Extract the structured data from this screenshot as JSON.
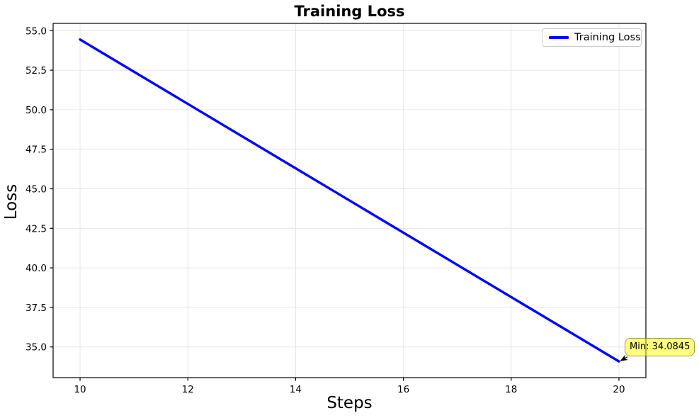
{
  "figure": {
    "background": "#ffffff"
  },
  "chart_data": {
    "type": "line",
    "title": "Training Loss",
    "xlabel": "Steps",
    "ylabel": "Loss",
    "xlim": [
      9.5,
      20.5
    ],
    "ylim": [
      33.06,
      55.46
    ],
    "xticks": [
      10,
      12,
      14,
      16,
      18,
      20
    ],
    "xtick_labels": [
      "10",
      "12",
      "14",
      "16",
      "18",
      "20"
    ],
    "yticks": [
      35.0,
      37.5,
      40.0,
      42.5,
      45.0,
      47.5,
      50.0,
      52.5,
      55.0
    ],
    "ytick_labels": [
      "35.0",
      "37.5",
      "40.0",
      "42.5",
      "45.0",
      "47.5",
      "50.0",
      "52.5",
      "55.0"
    ],
    "grid": true,
    "legend_position": "upper right",
    "series": [
      {
        "name": "Training Loss",
        "color": "#0000ff",
        "x": [
          10,
          20
        ],
        "y": [
          54.44,
          34.0845
        ]
      }
    ],
    "annotation": {
      "text": "Min: 34.0845",
      "x": 20,
      "y": 34.0845
    }
  },
  "colors": {
    "line": "#0000ff",
    "grid": "#e6e6e6",
    "spine": "#000000",
    "tick": "#000000",
    "annotation_fill_base": "#ffff00",
    "legend_border": "#c9c9c9"
  }
}
